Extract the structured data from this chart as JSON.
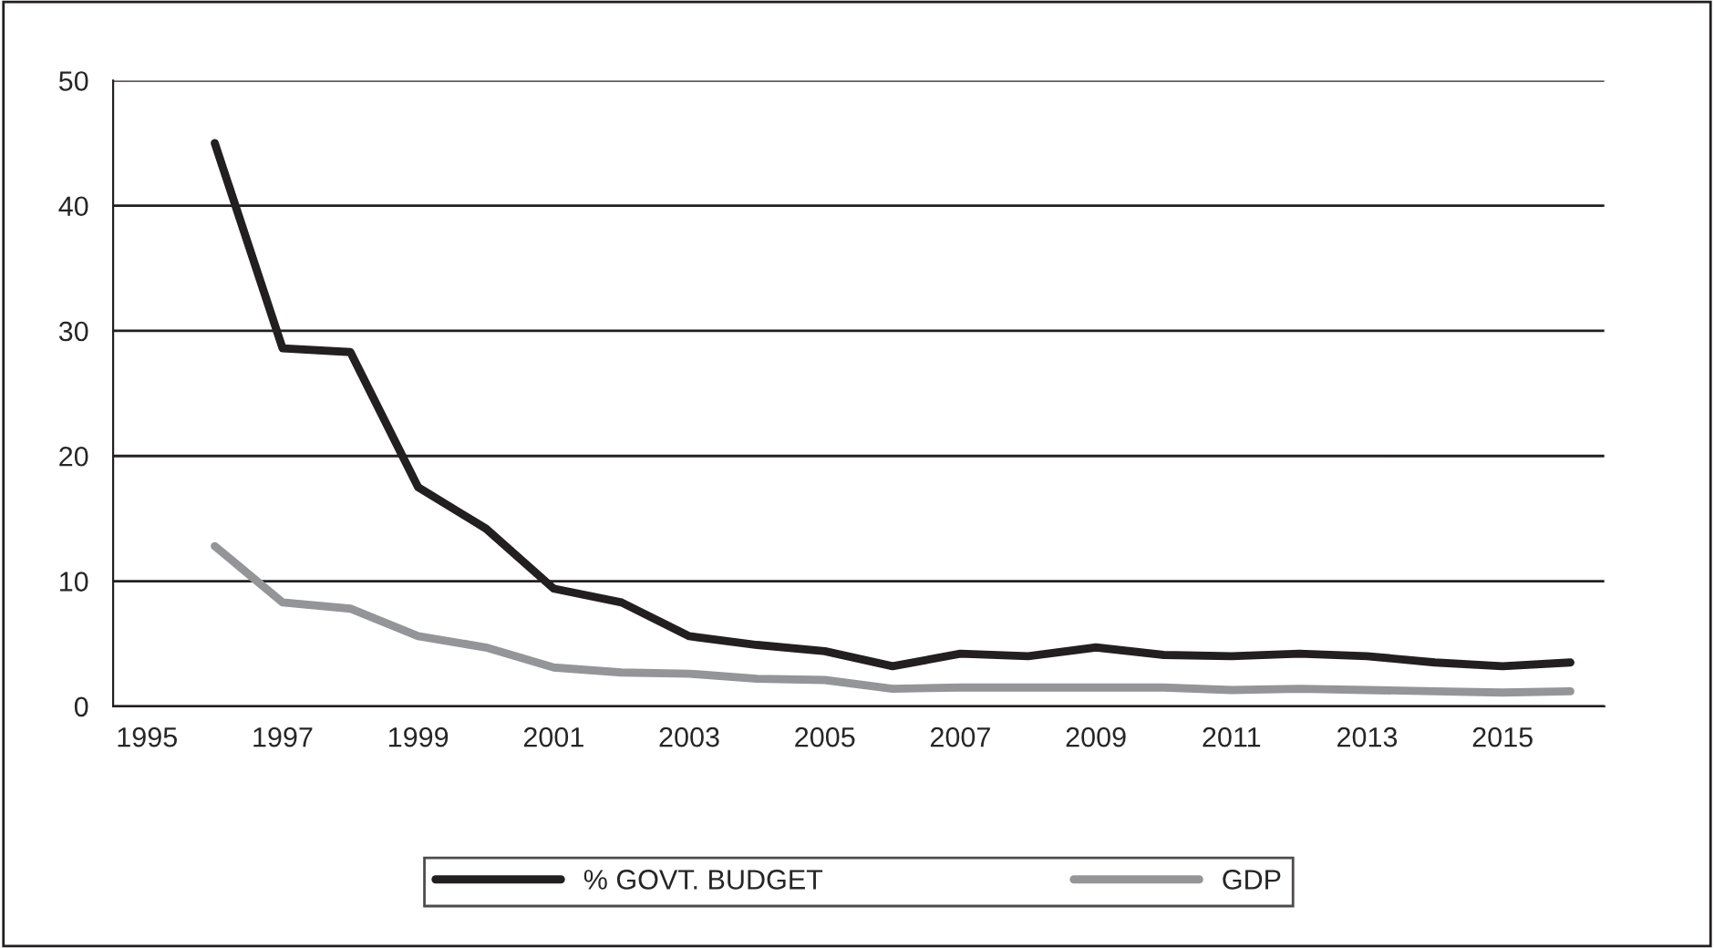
{
  "chart_data": {
    "type": "line",
    "categories": [
      "1995",
      null,
      "1997",
      null,
      "1999",
      null,
      "2001",
      null,
      "2003",
      null,
      "2005",
      null,
      "2007",
      null,
      "2009",
      null,
      "2011",
      null,
      "2013",
      null,
      "2015",
      null
    ],
    "series": [
      {
        "name": "% GOVT. BUDGET",
        "color": "#231f20",
        "values": [
          null,
          45,
          28.6,
          28.3,
          17.5,
          14.2,
          9.4,
          8.3,
          5.6,
          4.9,
          4.4,
          3.2,
          4.2,
          4.0,
          4.7,
          4.1,
          4.0,
          4.2,
          4.0,
          3.5,
          3.2,
          3.5
        ]
      },
      {
        "name": "GDP",
        "color": "#939598",
        "values": [
          null,
          12.8,
          8.3,
          7.8,
          5.6,
          4.7,
          3.1,
          2.7,
          2.6,
          2.2,
          2.1,
          1.4,
          1.5,
          1.5,
          1.5,
          1.5,
          1.3,
          1.4,
          1.3,
          1.2,
          1.1,
          1.2
        ]
      }
    ],
    "ylim": [
      0,
      50
    ],
    "yticks": [
      0,
      10,
      20,
      30,
      40,
      50
    ],
    "grid": "y",
    "legend": "bottom",
    "marker": "none",
    "line_style": "solid"
  }
}
